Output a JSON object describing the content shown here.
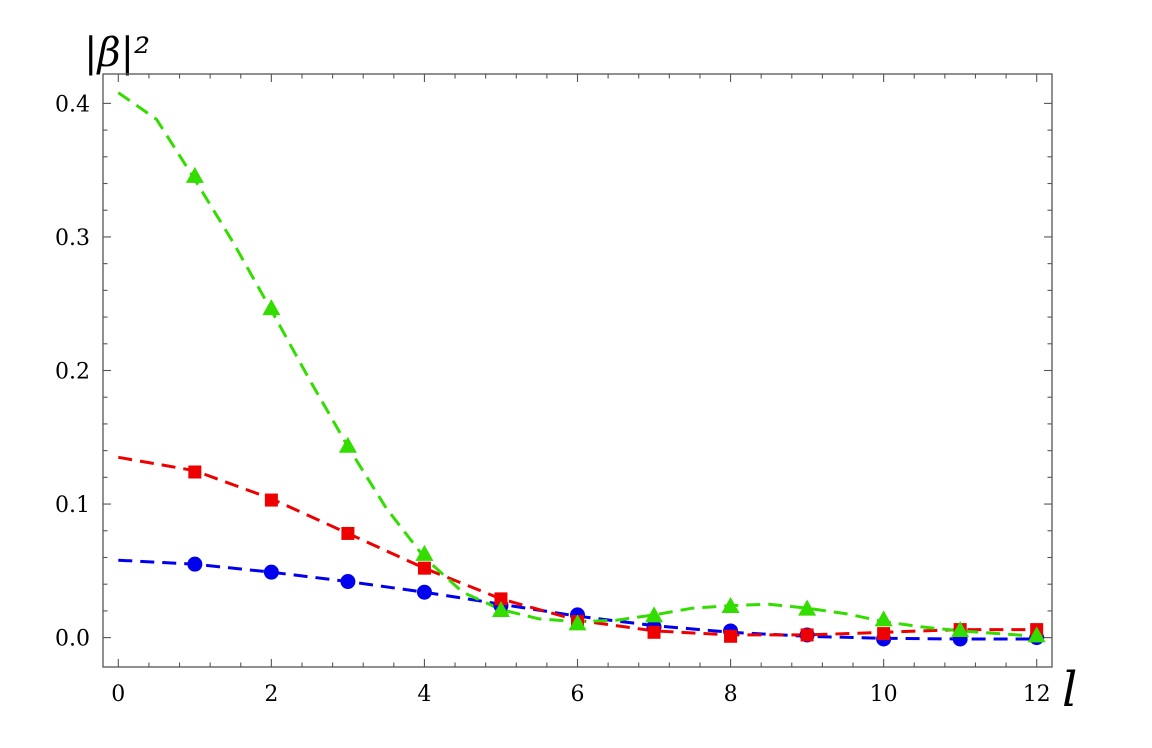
{
  "chart_data": {
    "type": "scatter",
    "ylabel": "|β|²",
    "xlabel": "l",
    "xlim": [
      -0.2,
      12.2
    ],
    "ylim": [
      -0.022,
      0.422
    ],
    "x_ticks": [
      0,
      2,
      4,
      6,
      8,
      10,
      12
    ],
    "y_ticks": [
      0.0,
      0.1,
      0.2,
      0.3,
      0.4
    ],
    "y_tick_labels": [
      "0.0",
      "0.1",
      "0.2",
      "0.3",
      "0.4"
    ],
    "grid": false,
    "frame": true,
    "series": [
      {
        "marker": "circle",
        "color": "#0000ee",
        "points": {
          "x": [
            1,
            2,
            3,
            4,
            5,
            6,
            7,
            8,
            9,
            10,
            11,
            12
          ],
          "y": [
            0.055,
            0.049,
            0.042,
            0.034,
            0.024,
            0.017,
            0.008,
            0.005,
            0.002,
            -0.001,
            -0.001,
            0.0
          ]
        },
        "curve": {
          "x": [
            0,
            1,
            2,
            3,
            4,
            5,
            6,
            7,
            8,
            9,
            10,
            11,
            12
          ],
          "y": [
            0.058,
            0.055,
            0.049,
            0.042,
            0.034,
            0.025,
            0.016,
            0.009,
            0.004,
            0.001,
            -0.0005,
            -0.001,
            -0.001
          ]
        }
      },
      {
        "marker": "square",
        "color": "#ee0000",
        "points": {
          "x": [
            1,
            2,
            3,
            4,
            5,
            6,
            7,
            8,
            9,
            10,
            11,
            12
          ],
          "y": [
            0.124,
            0.103,
            0.078,
            0.052,
            0.029,
            0.012,
            0.004,
            0.001,
            0.002,
            0.003,
            0.006,
            0.006
          ]
        },
        "curve": {
          "x": [
            0,
            1,
            2,
            3,
            4,
            5,
            6,
            7,
            8,
            9,
            10,
            11,
            12
          ],
          "y": [
            0.135,
            0.125,
            0.104,
            0.078,
            0.052,
            0.029,
            0.013,
            0.005,
            0.002,
            0.002,
            0.004,
            0.006,
            0.006
          ]
        }
      },
      {
        "marker": "triangle",
        "color": "#33dd00",
        "points": {
          "x": [
            1,
            2,
            3,
            4,
            5,
            6,
            7,
            8,
            9,
            10,
            11,
            12
          ],
          "y": [
            0.345,
            0.246,
            0.143,
            0.062,
            0.02,
            0.01,
            0.016,
            0.023,
            0.021,
            0.013,
            0.005,
            0.001
          ]
        },
        "curve": {
          "x": [
            0,
            0.5,
            1,
            1.5,
            2,
            2.5,
            3,
            3.5,
            4,
            4.5,
            5,
            5.5,
            6,
            6.5,
            7,
            7.5,
            8,
            8.5,
            9,
            9.5,
            10,
            10.5,
            11,
            11.5,
            12
          ],
          "y": [
            0.408,
            0.388,
            0.343,
            0.296,
            0.245,
            0.193,
            0.143,
            0.097,
            0.06,
            0.034,
            0.021,
            0.014,
            0.012,
            0.013,
            0.017,
            0.022,
            0.024,
            0.025,
            0.022,
            0.018,
            0.012,
            0.008,
            0.005,
            0.003,
            0.001
          ]
        }
      }
    ]
  }
}
